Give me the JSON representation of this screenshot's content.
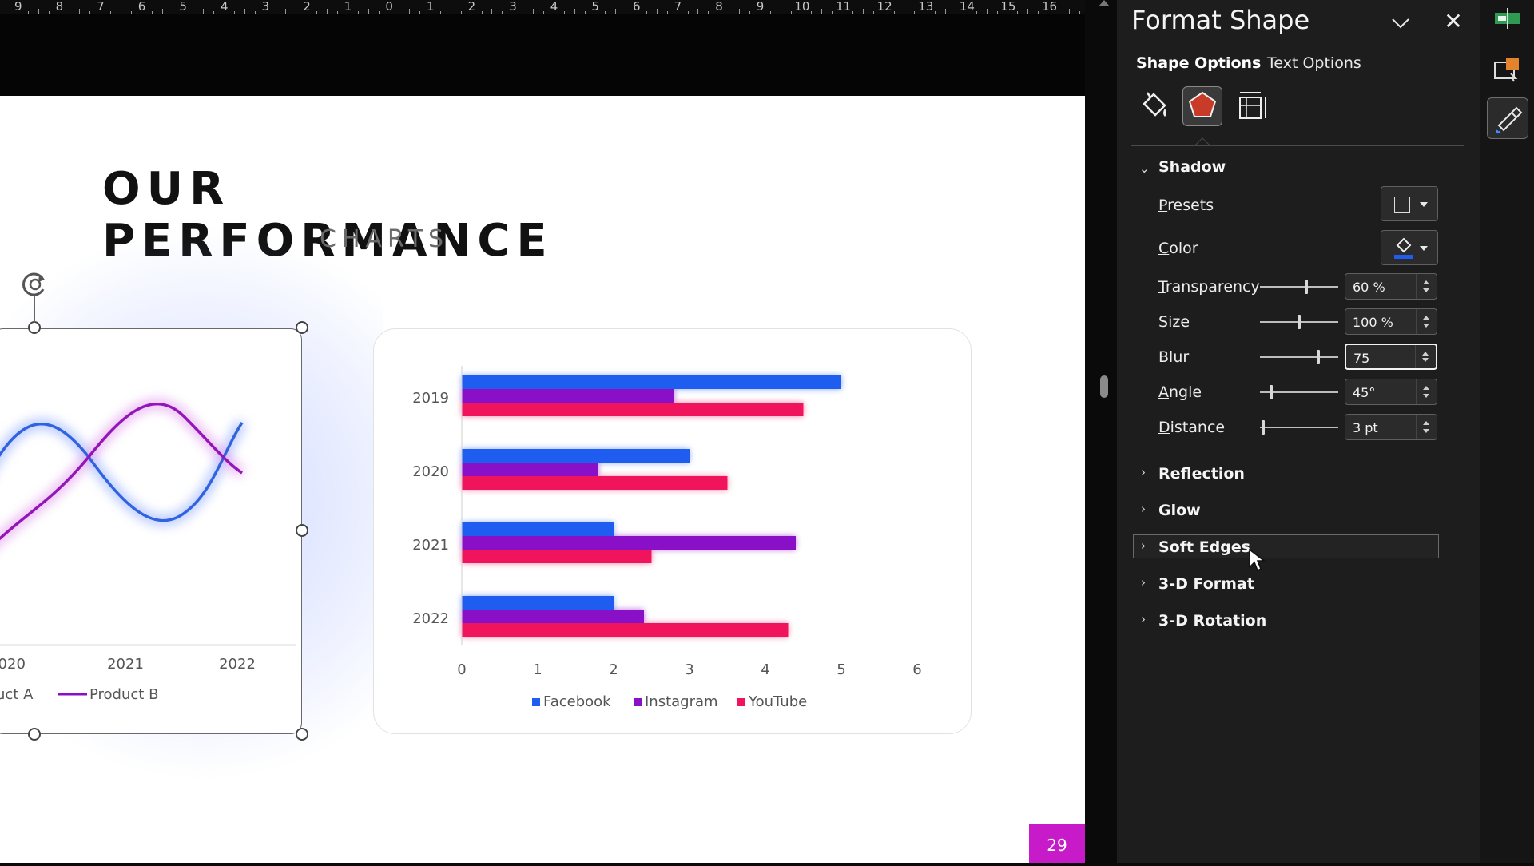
{
  "ruler": {
    "labels": [
      "9",
      "8",
      "7",
      "6",
      "5",
      "4",
      "3",
      "2",
      "1",
      "0",
      "1",
      "2",
      "3",
      "4",
      "5",
      "6",
      "7",
      "8",
      "9",
      "10",
      "11",
      "12",
      "13",
      "14",
      "15",
      "16"
    ]
  },
  "slide": {
    "title": "OUR PERFORMANCE",
    "subtitle": "CHARTS",
    "page_number": "29"
  },
  "line_chart": {
    "chart_data": {
      "type": "line",
      "x_tick_labels": [
        "2020",
        "2021",
        "2022"
      ],
      "legend": [
        "uct A",
        "Product B"
      ]
    }
  },
  "chart_data": {
    "type": "bar",
    "orientation": "horizontal",
    "categories": [
      "2019",
      "2020",
      "2021",
      "2022"
    ],
    "series": [
      {
        "name": "Facebook",
        "color": "#1f5cf0",
        "values": [
          5.0,
          3.0,
          2.0,
          2.0
        ]
      },
      {
        "name": "Instagram",
        "color": "#8a10c8",
        "values": [
          2.8,
          1.8,
          4.4,
          2.4
        ]
      },
      {
        "name": "YouTube",
        "color": "#f0145c",
        "values": [
          4.5,
          3.5,
          2.5,
          4.3
        ]
      }
    ],
    "xlim": [
      0,
      6
    ],
    "x_ticks": [
      "0",
      "1",
      "2",
      "3",
      "4",
      "5",
      "6"
    ],
    "legend_position": "bottom"
  },
  "pane": {
    "title": "Format Shape",
    "tabs": {
      "shape": "Shape Options",
      "text": "Text Options"
    },
    "categories": [
      "fill-line-icon",
      "effects-icon",
      "size-properties-icon"
    ],
    "sections": {
      "shadow": "Shadow",
      "reflection": "Reflection",
      "glow": "Glow",
      "soft_edges": "Soft Edges",
      "format_3d": "3-D Format",
      "rotation_3d": "3-D Rotation"
    },
    "shadow": {
      "presets": {
        "label_u": "P",
        "label_rest": "resets"
      },
      "color": {
        "label_u": "C",
        "label_rest": "olor",
        "value": "#1f5cf0"
      },
      "transparency": {
        "label_u": "T",
        "label_rest": "ransparency",
        "value": "60 %",
        "fraction": 0.6
      },
      "size": {
        "label_u": "S",
        "label_rest": "ize",
        "value": "100 %",
        "fraction": 0.5
      },
      "blur": {
        "label_u": "B",
        "label_rest": "lur",
        "value": "75",
        "fraction": 0.75
      },
      "angle": {
        "label_u": "A",
        "label_rest": "ngle",
        "value": "45°",
        "fraction": 0.125
      },
      "distance": {
        "label_u": "D",
        "label_rest": "istance",
        "value": "3 pt",
        "fraction": 0.02
      }
    }
  }
}
